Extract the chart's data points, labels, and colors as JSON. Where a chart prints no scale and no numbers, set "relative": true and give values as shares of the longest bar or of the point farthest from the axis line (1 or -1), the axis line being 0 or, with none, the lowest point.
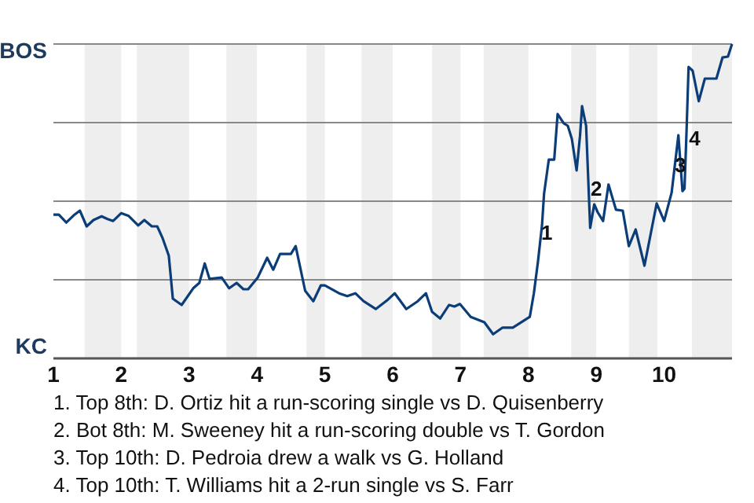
{
  "chart_data": {
    "type": "line",
    "relative": true,
    "xlim": [
      1,
      11
    ],
    "xticks": [
      1,
      2,
      3,
      4,
      5,
      6,
      7,
      8,
      9,
      10
    ],
    "marker": "none",
    "line_style": "solid",
    "ref_lines": [
      {
        "axis": "y",
        "value": 0.25,
        "color": "#888888"
      },
      {
        "axis": "y",
        "value": 0.5,
        "color": "#888888"
      },
      {
        "axis": "y",
        "value": 0.75,
        "color": "#888888"
      },
      {
        "axis": "y",
        "value": 1,
        "color": "#888888"
      }
    ],
    "bands": [
      {
        "axis": "x",
        "from": 1.46,
        "to": 2,
        "color": "#eeeeee"
      },
      {
        "axis": "x",
        "from": 2.23,
        "to": 3,
        "color": "#eeeeee"
      },
      {
        "axis": "x",
        "from": 3.55,
        "to": 4,
        "color": "#eeeeee"
      },
      {
        "axis": "x",
        "from": 4.73,
        "to": 5,
        "color": "#eeeeee"
      },
      {
        "axis": "x",
        "from": 5.54,
        "to": 6,
        "color": "#eeeeee"
      },
      {
        "axis": "x",
        "from": 6.58,
        "to": 7,
        "color": "#eeeeee"
      },
      {
        "axis": "x",
        "from": 7.34,
        "to": 8,
        "color": "#eeeeee"
      },
      {
        "axis": "x",
        "from": 8.63,
        "to": 9,
        "color": "#eeeeee"
      },
      {
        "axis": "x",
        "from": 9.48,
        "to": 9.9,
        "color": "#eeeeee"
      },
      {
        "axis": "x",
        "from": 10.41,
        "to": 11,
        "color": "#eeeeee"
      }
    ],
    "series": [
      {
        "color": "#0b3d78",
        "x": [
          1,
          1.08,
          1.19,
          1.31,
          1.39,
          1.49,
          1.59,
          1.71,
          1.8,
          1.88,
          2,
          2.11,
          2.25,
          2.34,
          2.45,
          2.53,
          2.61,
          2.7,
          2.76,
          2.89,
          3.06,
          3.15,
          3.23,
          3.3,
          3.48,
          3.59,
          3.7,
          3.8,
          3.87,
          4.01,
          4.15,
          4.24,
          4.34,
          4.5,
          4.57,
          4.71,
          4.83,
          4.94,
          5,
          5.21,
          5.33,
          5.45,
          5.57,
          5.75,
          5.93,
          6.03,
          6.2,
          6.37,
          6.49,
          6.58,
          6.7,
          6.83,
          6.91,
          6.99,
          7.15,
          7.35,
          7.48,
          7.62,
          7.77,
          8.02,
          8.08,
          8.14,
          8.2,
          8.23,
          8.3,
          8.38,
          8.43,
          8.52,
          8.58,
          8.64,
          8.71,
          8.76,
          8.79,
          8.85,
          8.91,
          8.97,
          9.02,
          9.1,
          9.18,
          9.29,
          9.39,
          9.48,
          9.58,
          9.71,
          9.89,
          10,
          10.11,
          10.21,
          10.27,
          10.3,
          10.33,
          10.36,
          10.42,
          10.51,
          10.6,
          10.77,
          10.86,
          10.94,
          11
        ],
        "values": [
          0.457,
          0.457,
          0.432,
          0.457,
          0.47,
          0.42,
          0.44,
          0.452,
          0.443,
          0.437,
          0.462,
          0.453,
          0.423,
          0.44,
          0.42,
          0.42,
          0.382,
          0.327,
          0.19,
          0.17,
          0.223,
          0.24,
          0.302,
          0.253,
          0.257,
          0.223,
          0.24,
          0.22,
          0.22,
          0.257,
          0.32,
          0.282,
          0.332,
          0.332,
          0.357,
          0.215,
          0.182,
          0.232,
          0.232,
          0.207,
          0.198,
          0.207,
          0.182,
          0.157,
          0.187,
          0.207,
          0.157,
          0.182,
          0.207,
          0.148,
          0.127,
          0.17,
          0.165,
          0.173,
          0.132,
          0.115,
          0.077,
          0.098,
          0.098,
          0.132,
          0.207,
          0.307,
          0.423,
          0.523,
          0.632,
          0.632,
          0.777,
          0.748,
          0.74,
          0.698,
          0.598,
          0.707,
          0.802,
          0.74,
          0.415,
          0.49,
          0.465,
          0.437,
          0.553,
          0.473,
          0.47,
          0.357,
          0.41,
          0.295,
          0.493,
          0.437,
          0.527,
          0.71,
          0.532,
          0.54,
          0.723,
          0.927,
          0.915,
          0.818,
          0.89,
          0.89,
          0.957,
          0.96,
          1
        ]
      }
    ],
    "annotations": [
      "BOS",
      "KC",
      {
        "text": "1",
        "x": 8.27,
        "y": 0.4
      },
      {
        "text": "2",
        "x": 9,
        "y": 0.54
      },
      {
        "text": "3",
        "x": 10.24,
        "y": 0.615
      },
      {
        "text": "4",
        "x": 10.45,
        "y": 0.7
      },
      "1. Top 8th: D. Ortiz hit a run-scoring single vs D. Quisenberry",
      "2. Bot 8th: M. Sweeney hit a run-scoring double vs T. Gordon",
      "3. Top 10th: D. Pedroia drew a walk vs G. Holland",
      "4. Top 10th: T. Williams hit a 2-run single vs S. Farr"
    ]
  }
}
